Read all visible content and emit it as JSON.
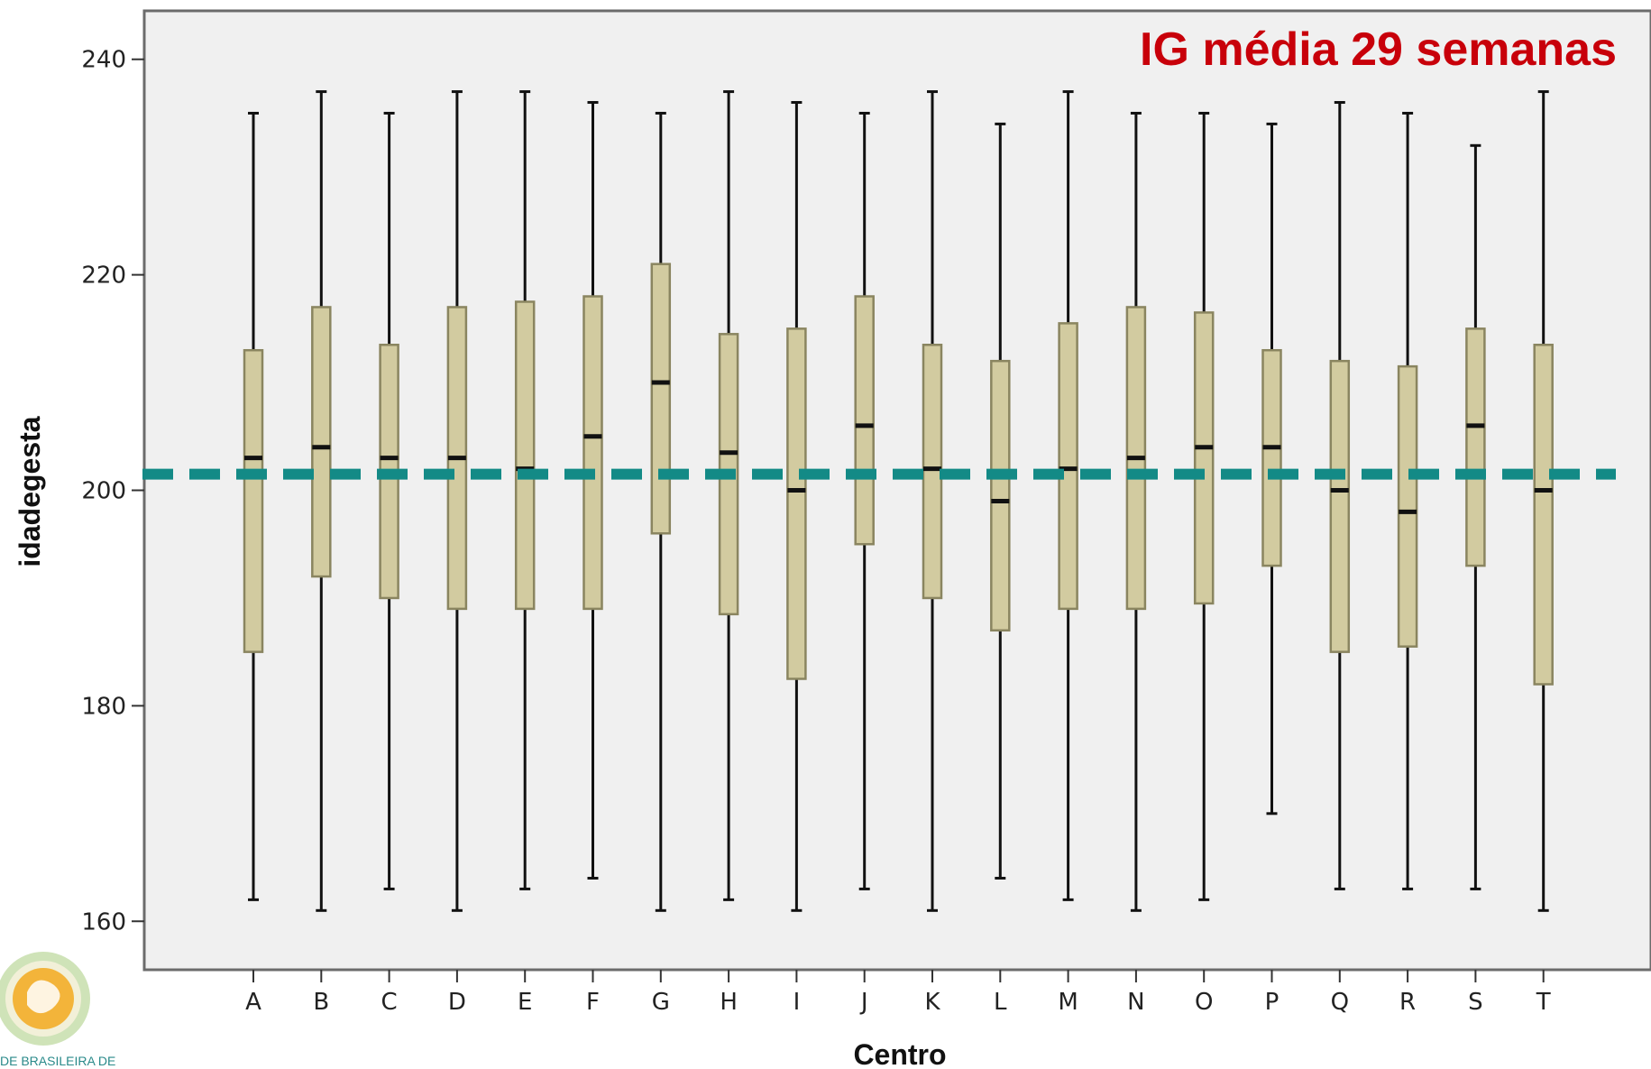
{
  "chart_data": {
    "type": "box",
    "ylabel": "idadegesta",
    "xlabel": "Centro",
    "annotation": "IG média 29 semanas",
    "reference_line": 201.5,
    "ylim": [
      155.5,
      244.5
    ],
    "yticks": [
      160,
      180,
      200,
      220,
      240
    ],
    "grid": false,
    "categories": [
      "A",
      "B",
      "C",
      "D",
      "E",
      "F",
      "G",
      "H",
      "I",
      "J",
      "K",
      "L",
      "M",
      "N",
      "O",
      "P",
      "Q",
      "R",
      "S",
      "T"
    ],
    "boxes": [
      {
        "label": "A",
        "min": 162,
        "q1": 185,
        "median": 203,
        "q3": 213,
        "max": 235
      },
      {
        "label": "B",
        "min": 161,
        "q1": 192,
        "median": 204,
        "q3": 217,
        "max": 237
      },
      {
        "label": "C",
        "min": 163,
        "q1": 190,
        "median": 203,
        "q3": 213.5,
        "max": 235
      },
      {
        "label": "D",
        "min": 161,
        "q1": 189,
        "median": 203,
        "q3": 217,
        "max": 237
      },
      {
        "label": "E",
        "min": 163,
        "q1": 189,
        "median": 202,
        "q3": 217.5,
        "max": 237
      },
      {
        "label": "F",
        "min": 164,
        "q1": 189,
        "median": 205,
        "q3": 218,
        "max": 236
      },
      {
        "label": "G",
        "min": 161,
        "q1": 196,
        "median": 210,
        "q3": 221,
        "max": 235
      },
      {
        "label": "H",
        "min": 162,
        "q1": 188.5,
        "median": 203.5,
        "q3": 214.5,
        "max": 237
      },
      {
        "label": "I",
        "min": 161,
        "q1": 182.5,
        "median": 200,
        "q3": 215,
        "max": 236
      },
      {
        "label": "J",
        "min": 163,
        "q1": 195,
        "median": 206,
        "q3": 218,
        "max": 235
      },
      {
        "label": "K",
        "min": 161,
        "q1": 190,
        "median": 202,
        "q3": 213.5,
        "max": 237
      },
      {
        "label": "L",
        "min": 164,
        "q1": 187,
        "median": 199,
        "q3": 212,
        "max": 234
      },
      {
        "label": "M",
        "min": 162,
        "q1": 189,
        "median": 202,
        "q3": 215.5,
        "max": 237
      },
      {
        "label": "N",
        "min": 161,
        "q1": 189,
        "median": 203,
        "q3": 217,
        "max": 235
      },
      {
        "label": "O",
        "min": 162,
        "q1": 189.5,
        "median": 204,
        "q3": 216.5,
        "max": 235
      },
      {
        "label": "P",
        "min": 170,
        "q1": 193,
        "median": 204,
        "q3": 213,
        "max": 234
      },
      {
        "label": "Q",
        "min": 163,
        "q1": 185,
        "median": 200,
        "q3": 212,
        "max": 236
      },
      {
        "label": "R",
        "min": 163,
        "q1": 185.5,
        "median": 198,
        "q3": 211.5,
        "max": 235
      },
      {
        "label": "S",
        "min": 163,
        "q1": 193,
        "median": 206,
        "q3": 215,
        "max": 232
      },
      {
        "label": "T",
        "min": 161,
        "q1": 182,
        "median": 200,
        "q3": 213.5,
        "max": 237
      }
    ],
    "colors": {
      "box_fill": "#d2cba0",
      "box_stroke": "#8a8560",
      "whisker": "#111111",
      "median": "#111111",
      "plot_bg": "#f0f0f0",
      "reference_line": "#138a86",
      "annotation": "#c8000a"
    }
  },
  "logo": {
    "text": "DE BRASILEIRA DE"
  }
}
